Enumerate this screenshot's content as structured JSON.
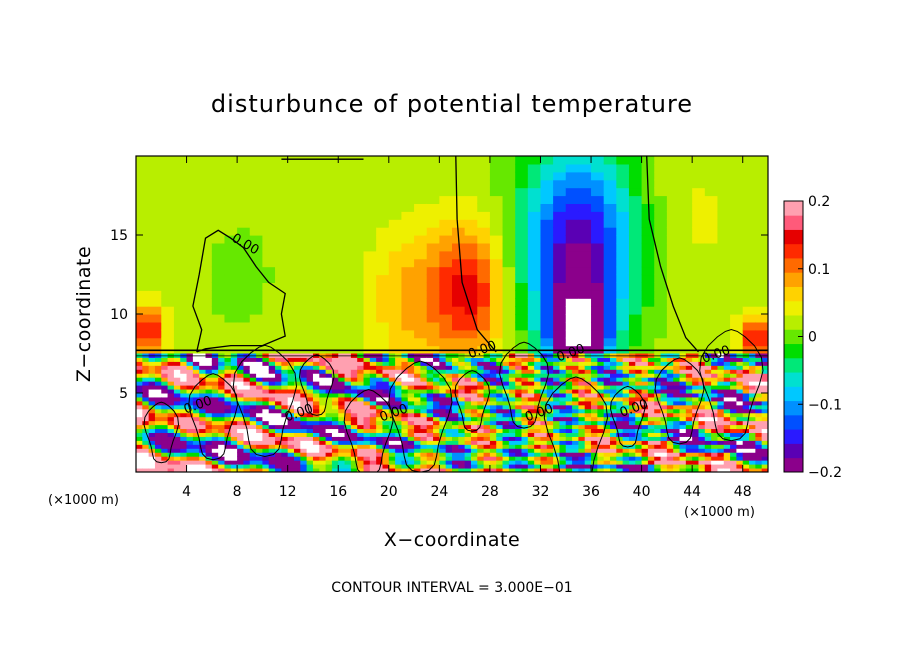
{
  "chart_data": {
    "type": "heatmap",
    "title": "disturbunce of potential temperature",
    "xlabel": "X−coordinate",
    "ylabel": "Z−coordinate",
    "x_unit_left": "(×1000 m)",
    "x_unit_right": "(×1000 m)",
    "xlim": [
      0,
      50
    ],
    "ylim": [
      0,
      20
    ],
    "x_ticks": [
      {
        "value": 4,
        "label": "4"
      },
      {
        "value": 8,
        "label": "8"
      },
      {
        "value": 12,
        "label": "12"
      },
      {
        "value": 16,
        "label": "16"
      },
      {
        "value": 20,
        "label": "20"
      },
      {
        "value": 24,
        "label": "24"
      },
      {
        "value": 28,
        "label": "28"
      },
      {
        "value": 32,
        "label": "32"
      },
      {
        "value": 36,
        "label": "36"
      },
      {
        "value": 40,
        "label": "40"
      },
      {
        "value": 44,
        "label": "44"
      },
      {
        "value": 48,
        "label": "48"
      }
    ],
    "y_ticks": [
      {
        "value": 5,
        "label": "5"
      },
      {
        "value": 10,
        "label": "10"
      },
      {
        "value": 15,
        "label": "15"
      }
    ],
    "colorbar": {
      "vmin": -0.2,
      "vmax": 0.2,
      "ticks": [
        {
          "value": 0.2,
          "label": "0.2"
        },
        {
          "value": 0.1,
          "label": "0.1"
        },
        {
          "value": 0,
          "label": "0"
        },
        {
          "value": -0.1,
          "label": "−0.1"
        },
        {
          "value": -0.2,
          "label": "−0.2"
        }
      ],
      "colors": [
        "#8b008b",
        "#5a00b4",
        "#2a1aff",
        "#0050ff",
        "#0090ff",
        "#00c8ff",
        "#00e0d0",
        "#00e878",
        "#00dd00",
        "#66e800",
        "#b8ee00",
        "#eef000",
        "#ffd200",
        "#ffa200",
        "#ff6a00",
        "#ff2a00",
        "#e60000",
        "#ff5a7a",
        "#ffa0b0"
      ]
    },
    "contour_labels": [
      {
        "x": 8.5,
        "z": 14.2,
        "label": "0.00"
      },
      {
        "x": 27.5,
        "z": 7.5,
        "label": "0.00"
      },
      {
        "x": 34.5,
        "z": 7.3,
        "label": "0.00"
      },
      {
        "x": 46.0,
        "z": 7.2,
        "label": "0.00"
      },
      {
        "x": 5.0,
        "z": 4.0,
        "label": "0.00"
      },
      {
        "x": 13.0,
        "z": 3.5,
        "label": "0.00"
      },
      {
        "x": 20.5,
        "z": 3.5,
        "label": "0.00"
      },
      {
        "x": 32.0,
        "z": 3.5,
        "label": "0.00"
      },
      {
        "x": 39.5,
        "z": 3.8,
        "label": "0.00"
      }
    ],
    "contour_interval": "CONTOUR INTERVAL = 3.000E−01"
  }
}
